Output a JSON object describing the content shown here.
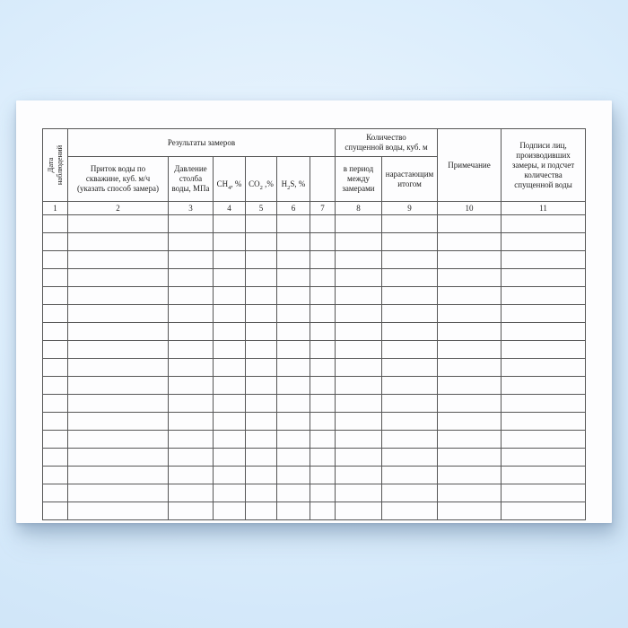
{
  "page": {
    "background_edge_color": "#cbe1f5",
    "background_center_color": "#eef6fe",
    "paper_color": "#fdfdfe",
    "grid_color": "#565656",
    "text_color": "#1c1c1c"
  },
  "table": {
    "header": {
      "date_line1": "Дата",
      "date_line2": "наблюдений",
      "group_results": "Результаты замеров",
      "inflow": "Приток воды по\nскважине, куб. м/ч\n(указать способ замера)",
      "pressure": "Давление\nстолба\nводы, МПа",
      "gases": [
        {
          "pre": "CH",
          "sub": "4",
          "post": ", %"
        },
        {
          "pre": "CO",
          "sub": "2",
          "post": " ,%"
        },
        {
          "pre": "H",
          "sub": "2",
          "post": "S, %"
        }
      ],
      "empty_col": "",
      "group_quantity": "Количество\nспущенной воды, куб. м",
      "period": "в период\nмежду\nзамерами",
      "cumulative": "нарастающим\nитогом",
      "note": "Примечание",
      "signatures": "Подписи лиц,\nпроизводивших\nзамеры, и подсчет\nколичества\nспущенной воды"
    },
    "column_numbers": [
      "1",
      "2",
      "3",
      "4",
      "5",
      "6",
      "7",
      "8",
      "9",
      "10",
      "11"
    ],
    "column_count": 11,
    "empty_row_count": 17
  }
}
